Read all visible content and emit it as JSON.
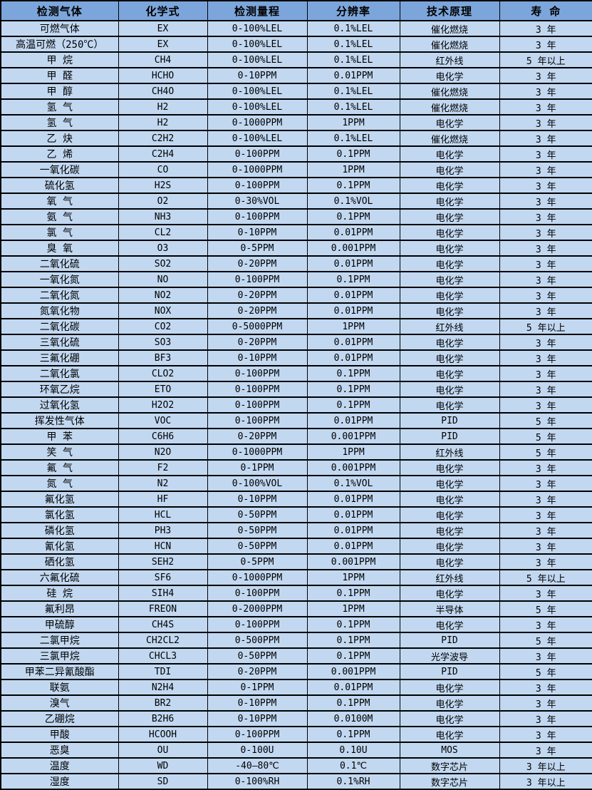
{
  "colors": {
    "header_bg": "#7CA6DB",
    "row_bg": "#C2D8F1",
    "border": "#000000",
    "text": "#000000"
  },
  "table": {
    "headers": [
      "检测气体",
      "化学式",
      "检测量程",
      "分辨率",
      "技术原理",
      "寿 命"
    ],
    "column_semantics": [
      "gas-name",
      "chemical-formula",
      "detection-range",
      "resolution",
      "technology-principle",
      "lifespan"
    ],
    "rows": [
      [
        "可燃气体",
        "EX",
        "0-100%LEL",
        "0.1%LEL",
        "催化燃烧",
        "3 年"
      ],
      [
        "高温可燃（250℃）",
        "EX",
        "0-100%LEL",
        "0.1%LEL",
        "催化燃烧",
        "3 年"
      ],
      [
        "甲 烷",
        "CH4",
        "0-100%LEL",
        "0.1%LEL",
        "红外线",
        "5 年以上"
      ],
      [
        "甲 醛",
        "HCHO",
        "0-10PPM",
        "0.01PPM",
        "电化学",
        "3 年"
      ],
      [
        "甲 醇",
        "CH4O",
        "0-100%LEL",
        "0.1%LEL",
        "催化燃烧",
        "3 年"
      ],
      [
        "氢 气",
        "H2",
        "0-100%LEL",
        "0.1%LEL",
        "催化燃烧",
        "3 年"
      ],
      [
        "氢 气",
        "H2",
        "0-1000PPM",
        "1PPM",
        "电化学",
        "3 年"
      ],
      [
        "乙 炔",
        "C2H2",
        "0-100%LEL",
        "0.1%LEL",
        "催化燃烧",
        "3 年"
      ],
      [
        "乙 烯",
        "C2H4",
        "0-100PPM",
        "0.1PPM",
        "电化学",
        "3 年"
      ],
      [
        "一氧化碳",
        "CO",
        "0-1000PPM",
        "1PPM",
        "电化学",
        "3 年"
      ],
      [
        "硫化氢",
        "H2S",
        "0-100PPM",
        "0.1PPM",
        "电化学",
        "3 年"
      ],
      [
        "氧 气",
        "O2",
        "0-30%VOL",
        "0.1%VOL",
        "电化学",
        "3 年"
      ],
      [
        "氨 气",
        "NH3",
        "0-100PPM",
        "0.1PPM",
        "电化学",
        "3 年"
      ],
      [
        "氯 气",
        "CL2",
        "0-10PPM",
        "0.01PPM",
        "电化学",
        "3 年"
      ],
      [
        "臭 氧",
        "O3",
        "0-5PPM",
        "0.001PPM",
        "电化学",
        "3 年"
      ],
      [
        "二氧化硫",
        "SO2",
        "0-20PPM",
        "0.01PPM",
        "电化学",
        "3 年"
      ],
      [
        "一氧化氮",
        "NO",
        "0-100PPM",
        "0.1PPM",
        "电化学",
        "3 年"
      ],
      [
        "二氧化氮",
        "NO2",
        "0-20PPM",
        "0.01PPM",
        "电化学",
        "3 年"
      ],
      [
        "氮氧化物",
        "NOX",
        "0-20PPM",
        "0.01PPM",
        "电化学",
        "3 年"
      ],
      [
        "二氧化碳",
        "CO2",
        "0-5000PPM",
        "1PPM",
        "红外线",
        "5 年以上"
      ],
      [
        "三氧化硫",
        "SO3",
        "0-20PPM",
        "0.01PPM",
        "电化学",
        "3 年"
      ],
      [
        "三氟化硼",
        "BF3",
        "0-10PPM",
        "0.01PPM",
        "电化学",
        "3 年"
      ],
      [
        "二氧化氯",
        "CLO2",
        "0-100PPM",
        "0.1PPM",
        "电化学",
        "3 年"
      ],
      [
        "环氧乙烷",
        "ETO",
        "0-100PPM",
        "0.1PPM",
        "电化学",
        "3 年"
      ],
      [
        "过氧化氢",
        "H2O2",
        "0-100PPM",
        "0.1PPM",
        "电化学",
        "3 年"
      ],
      [
        "挥发性气体",
        "VOC",
        "0-100PPM",
        "0.01PPM",
        "PID",
        "5 年"
      ],
      [
        "甲 苯",
        "C6H6",
        "0-20PPM",
        "0.001PPM",
        "PID",
        "5 年"
      ],
      [
        "笑 气",
        "N2O",
        "0-1000PPM",
        "1PPM",
        "红外线",
        "5 年"
      ],
      [
        "氟 气",
        "F2",
        "0-1PPM",
        "0.001PPM",
        "电化学",
        "3 年"
      ],
      [
        "氮 气",
        "N2",
        "0-100%VOL",
        "0.1%VOL",
        "电化学",
        "3 年"
      ],
      [
        "氟化氢",
        "HF",
        "0-10PPM",
        "0.01PPM",
        "电化学",
        "3 年"
      ],
      [
        "氯化氢",
        "HCL",
        "0-50PPM",
        "0.01PPM",
        "电化学",
        "3 年"
      ],
      [
        "磷化氢",
        "PH3",
        "0-50PPM",
        "0.01PPM",
        "电化学",
        "3 年"
      ],
      [
        "氰化氢",
        "HCN",
        "0-50PPM",
        "0.01PPM",
        "电化学",
        "3 年"
      ],
      [
        "硒化氢",
        "SEH2",
        "0-5PPM",
        "0.001PPM",
        "电化学",
        "3 年"
      ],
      [
        "六氟化硫",
        "SF6",
        "0-1000PPM",
        "1PPM",
        "红外线",
        "5 年以上"
      ],
      [
        "硅 烷",
        "SIH4",
        "0-100PPM",
        "0.1PPM",
        "电化学",
        "3 年"
      ],
      [
        "氟利昂",
        "FREON",
        "0-2000PPM",
        "1PPM",
        "半导体",
        "5 年"
      ],
      [
        "甲硫醇",
        "CH4S",
        "0-100PPM",
        "0.1PPM",
        "电化学",
        "3 年"
      ],
      [
        "二氯甲烷",
        "CH2CL2",
        "0-500PPM",
        "0.1PPM",
        "PID",
        "5 年"
      ],
      [
        "三氯甲烷",
        "CHCL3",
        "0-50PPM",
        "0.1PPM",
        "光学波导",
        "3 年"
      ],
      [
        "甲苯二异氰酸酯",
        "TDI",
        "0-20PPM",
        "0.001PPM",
        "PID",
        "5 年"
      ],
      [
        "联氨",
        "N2H4",
        "0-1PPM",
        "0.01PPM",
        "电化学",
        "3 年"
      ],
      [
        "溴气",
        "BR2",
        "0-10PPM",
        "0.1PPM",
        "电化学",
        "3 年"
      ],
      [
        "乙硼烷",
        "B2H6",
        "0-10PPM",
        "0.0100M",
        "电化学",
        "3 年"
      ],
      [
        "甲酸",
        "HCOOH",
        "0-100PPM",
        "0.1PPM",
        "电化学",
        "3 年"
      ],
      [
        "恶臭",
        "OU",
        "0-100U",
        "0.10U",
        "MOS",
        "3 年"
      ],
      [
        "温度",
        "WD",
        "-40—80℃",
        "0.1℃",
        "数字芯片",
        "3 年以上"
      ],
      [
        "湿度",
        "SD",
        "0-100%RH",
        "0.1%RH",
        "数字芯片",
        "3 年以上"
      ]
    ]
  }
}
